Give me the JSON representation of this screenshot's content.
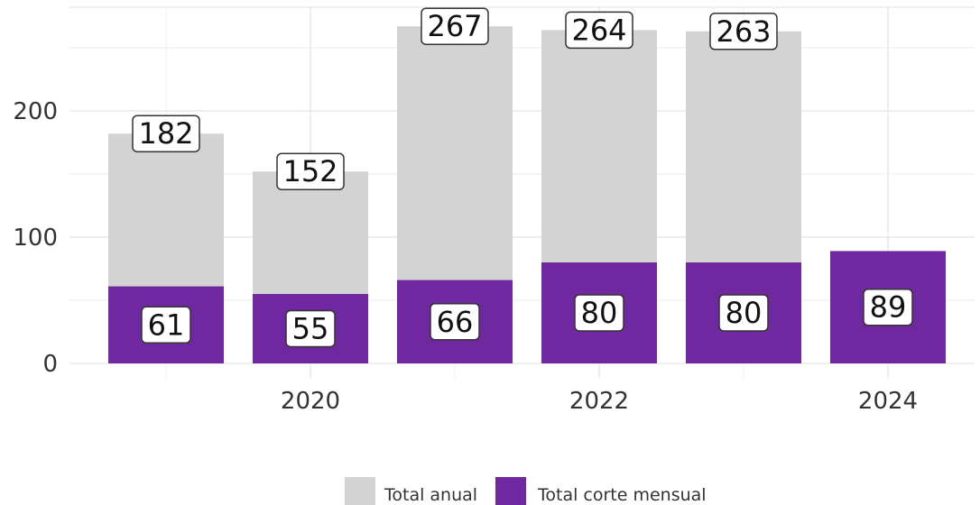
{
  "chart_data": {
    "type": "bar",
    "x": [
      2019,
      2020,
      2021,
      2022,
      2023,
      2024
    ],
    "x_ticks": [
      "2020",
      "2022",
      "2024"
    ],
    "y_ticks": [
      "0",
      "100",
      "200"
    ],
    "ylim": [
      0,
      285
    ],
    "grid": true,
    "legend_position": "bottom",
    "series": [
      {
        "name": "Total anual",
        "color": "#d3d3d3",
        "values": [
          182,
          152,
          267,
          264,
          263,
          null
        ],
        "labels": [
          "182",
          "152",
          "267",
          "264",
          "263",
          ""
        ]
      },
      {
        "name": "Total corte mensual",
        "color": "#7028a0",
        "values": [
          61,
          55,
          66,
          80,
          80,
          89
        ],
        "labels": [
          "61",
          "55",
          "66",
          "80",
          "80",
          "89"
        ]
      }
    ]
  }
}
